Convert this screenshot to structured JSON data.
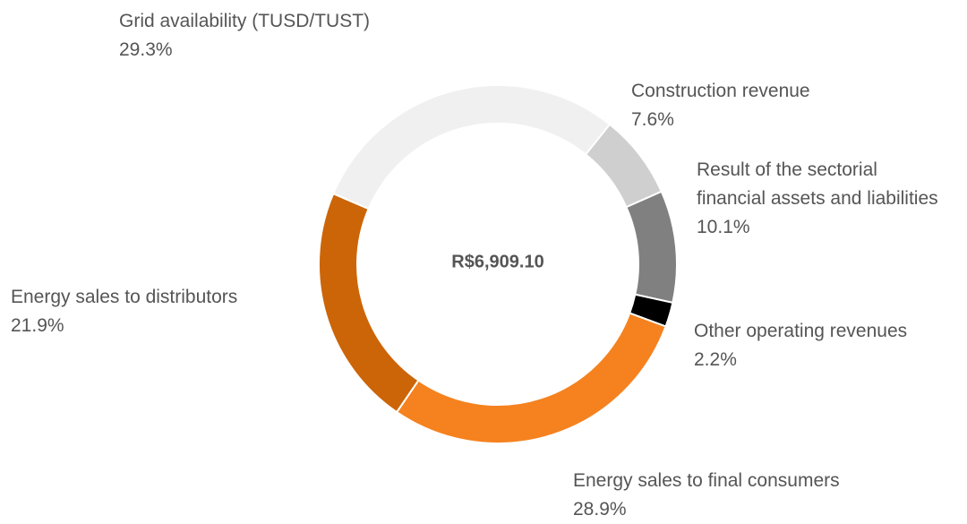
{
  "chart_data": {
    "type": "donut",
    "center_label": "R$6,909.10",
    "categories": [
      "Grid availability (TUSD/TUST)",
      "Construction revenue",
      "Result of the sectorial financial assets and liabilities",
      "Other operating revenues",
      "Energy sales to final consumers",
      "Energy sales to distributors"
    ],
    "values": [
      29.3,
      7.6,
      10.1,
      2.2,
      28.9,
      21.9
    ],
    "value_labels": [
      "29.3%",
      "7.6%",
      "10.1%",
      "2.2%",
      "28.9%",
      "21.9%"
    ],
    "colors": [
      "#f0f0f0",
      "#cfcfcf",
      "#808080",
      "#000000",
      "#f5821f",
      "#cc6508"
    ]
  }
}
